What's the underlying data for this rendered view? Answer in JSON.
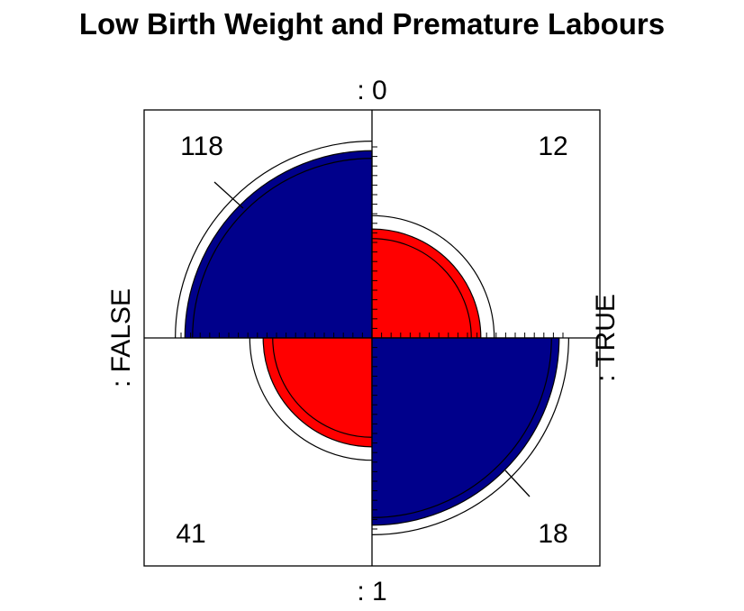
{
  "chart_data": {
    "type": "fourfold",
    "title": "Low Birth Weight and Premature Labours",
    "row_labels": [
      ": 0",
      ": 1"
    ],
    "col_labels": [
      ": FALSE",
      ": TRUE"
    ],
    "cells": [
      {
        "row": 0,
        "col": 0,
        "label": "118",
        "value": 118,
        "fill": "#00008B"
      },
      {
        "row": 0,
        "col": 1,
        "label": "12",
        "value": 12,
        "fill": "#FF0000"
      },
      {
        "row": 1,
        "col": 0,
        "label": "41",
        "value": 41,
        "fill": "#FF0000"
      },
      {
        "row": 1,
        "col": 1,
        "label": "18",
        "value": 18,
        "fill": "#00008B"
      }
    ],
    "standardized_radius_fraction": [
      0.98,
      0.57,
      0.57,
      0.98
    ],
    "confidence_ring_fraction": [
      [
        0.94,
        1.03
      ],
      [
        0.52,
        0.64
      ],
      [
        0.52,
        0.64
      ],
      [
        0.94,
        1.03
      ]
    ],
    "colors": {
      "positive": "#00008B",
      "negative": "#FF0000"
    }
  }
}
